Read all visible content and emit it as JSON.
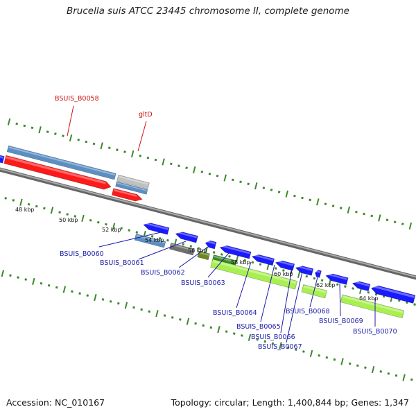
{
  "title": "Brucella suis ATCC 23445 chromosome II, complete genome",
  "footer": {
    "accession": "Accession: NC_010167",
    "summary": "Topology: circular; Length: 1,400,844 bp; Genes: 1,347"
  },
  "colors": {
    "plus_track": "#5b8fc4",
    "plus_red": "#ff1a1a",
    "minus_blue": "#1a1aff",
    "minus_green": "#a8f050",
    "tick_green": "#3a8a2a",
    "backbone": "#888888",
    "label_blue": "#1a1aaa",
    "label_red": "#cc1111"
  },
  "scale_labels": [
    "48 kbp",
    "50 kbp",
    "52 kbp",
    "54 kbp",
    "56 kbp",
    "58 kbp",
    "60 kbp",
    "62 kbp",
    "64 kbp"
  ],
  "gene_labels_top": [
    "BSUIS_B0058",
    "gltD"
  ],
  "gene_labels_bottom": [
    "BSUIS_B0060",
    "BSUIS_B0061",
    "BSUIS_B0062",
    "BSUIS_B0063",
    "BSUIS_B0064",
    "BSUIS_B0065",
    "BSUIS_B0066",
    "BSUIS_B0067",
    "BSUIS_B0068",
    "BSUIS_B0069",
    "BSUIS_B0070"
  ]
}
